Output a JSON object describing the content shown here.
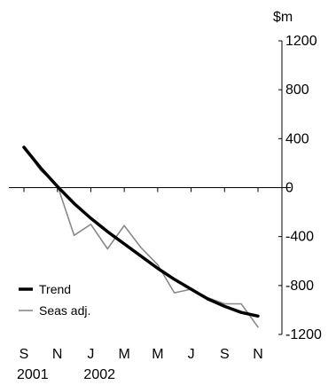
{
  "chart_data": {
    "type": "line",
    "unit": "$m",
    "x": [
      "S 2001",
      "O 2001",
      "N 2001",
      "D 2001",
      "J 2002",
      "F 2002",
      "M 2002",
      "A 2002",
      "M 2002",
      "J 2002",
      "J 2002",
      "A 2002",
      "S 2002",
      "O 2002",
      "N 2002"
    ],
    "x_tick_labels": [
      "S",
      "N",
      "J",
      "M",
      "M",
      "J",
      "S",
      "N"
    ],
    "x_year_labels": [
      "2001",
      "2002"
    ],
    "ylim": [
      -1200,
      1200
    ],
    "y_ticks": [
      1200,
      800,
      400,
      0,
      -400,
      -800,
      -1200
    ],
    "y_tick_labels": [
      "1200",
      "800",
      "400",
      "0",
      "-400",
      "-800",
      "-1200"
    ],
    "series": [
      {
        "name": "Trend",
        "color": "#000000",
        "values": [
          330,
          160,
          10,
          -130,
          -250,
          -360,
          -460,
          -560,
          -660,
          -750,
          -830,
          -910,
          -970,
          -1020,
          -1050
        ]
      },
      {
        "name": "Seas adj.",
        "color": "#888888",
        "values": [
          330,
          140,
          20,
          -390,
          -300,
          -500,
          -310,
          -490,
          -630,
          -860,
          -830,
          -900,
          -950,
          -950,
          -1140
        ]
      }
    ],
    "legend_position": "bottom-left",
    "grid": false
  }
}
